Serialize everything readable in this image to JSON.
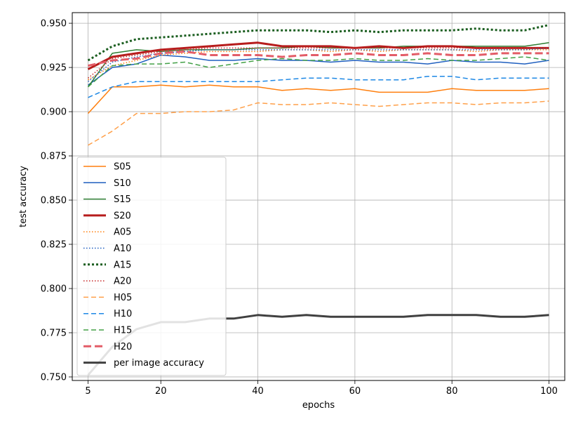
{
  "chart_data": {
    "type": "line",
    "title": "",
    "xlabel": "epochs",
    "ylabel": "test accuracy",
    "xlim": [
      1.75,
      103.25
    ],
    "ylim": [
      0.748,
      0.956
    ],
    "xticks": [
      "5",
      "20",
      "40",
      "60",
      "80",
      "100"
    ],
    "xtick_values": [
      5,
      20,
      40,
      60,
      80,
      100
    ],
    "yticks": [
      "0.750",
      "0.775",
      "0.800",
      "0.825",
      "0.850",
      "0.875",
      "0.900",
      "0.925",
      "0.950"
    ],
    "ytick_values": [
      0.75,
      0.775,
      0.8,
      0.825,
      0.85,
      0.875,
      0.9,
      0.925,
      0.95
    ],
    "grid": true,
    "legend_position": "lower-left",
    "x": [
      5,
      10,
      15,
      20,
      25,
      30,
      35,
      40,
      45,
      50,
      55,
      60,
      65,
      70,
      75,
      80,
      85,
      90,
      95,
      100
    ],
    "series": [
      {
        "name": "S05",
        "color": "#ff7f0e",
        "style": "solid",
        "width": 1.5,
        "values": [
          0.899,
          0.914,
          0.914,
          0.915,
          0.914,
          0.915,
          0.914,
          0.914,
          0.912,
          0.913,
          0.912,
          0.913,
          0.911,
          0.911,
          0.911,
          0.913,
          0.912,
          0.912,
          0.912,
          0.913
        ]
      },
      {
        "name": "S10",
        "color": "#1f5fbf",
        "style": "solid",
        "width": 1.5,
        "values": [
          0.915,
          0.925,
          0.927,
          0.932,
          0.931,
          0.929,
          0.929,
          0.93,
          0.929,
          0.929,
          0.928,
          0.929,
          0.928,
          0.928,
          0.927,
          0.929,
          0.928,
          0.928,
          0.927,
          0.929
        ]
      },
      {
        "name": "S15",
        "color": "#2e7d32",
        "style": "solid",
        "width": 1.5,
        "values": [
          0.914,
          0.933,
          0.935,
          0.934,
          0.935,
          0.935,
          0.935,
          0.936,
          0.936,
          0.937,
          0.936,
          0.936,
          0.936,
          0.937,
          0.937,
          0.937,
          0.937,
          0.937,
          0.937,
          0.939
        ]
      },
      {
        "name": "S20",
        "color": "#b71c1c",
        "style": "solid",
        "width": 3,
        "values": [
          0.924,
          0.931,
          0.933,
          0.935,
          0.936,
          0.937,
          0.938,
          0.939,
          0.937,
          0.937,
          0.937,
          0.936,
          0.937,
          0.936,
          0.937,
          0.937,
          0.936,
          0.936,
          0.936,
          0.936
        ]
      },
      {
        "name": "A05",
        "color": "#ff7f0e",
        "style": "dotted",
        "width": 1.5,
        "values": [
          0.918,
          0.926,
          0.929,
          0.932,
          0.933,
          0.934,
          0.934,
          0.934,
          0.935,
          0.935,
          0.934,
          0.935,
          0.934,
          0.935,
          0.935,
          0.935,
          0.934,
          0.935,
          0.935,
          0.935
        ]
      },
      {
        "name": "A10",
        "color": "#1f5fbf",
        "style": "dotted",
        "width": 1.5,
        "values": [
          0.917,
          0.928,
          0.931,
          0.933,
          0.934,
          0.935,
          0.935,
          0.935,
          0.935,
          0.935,
          0.935,
          0.935,
          0.935,
          0.935,
          0.935,
          0.935,
          0.935,
          0.935,
          0.935,
          0.936
        ]
      },
      {
        "name": "A15",
        "color": "#1b5e20",
        "style": "dotted",
        "width": 3,
        "values": [
          0.929,
          0.937,
          0.941,
          0.942,
          0.943,
          0.944,
          0.945,
          0.946,
          0.946,
          0.946,
          0.945,
          0.946,
          0.945,
          0.946,
          0.946,
          0.946,
          0.947,
          0.946,
          0.946,
          0.949
        ]
      },
      {
        "name": "A20",
        "color": "#c62828",
        "style": "dotted",
        "width": 1.5,
        "values": [
          0.919,
          0.93,
          0.932,
          0.934,
          0.935,
          0.936,
          0.936,
          0.936,
          0.936,
          0.936,
          0.936,
          0.936,
          0.936,
          0.936,
          0.936,
          0.936,
          0.936,
          0.936,
          0.936,
          0.936
        ]
      },
      {
        "name": "H05",
        "color": "#ffa04a",
        "style": "dashed",
        "width": 1.5,
        "values": [
          0.881,
          0.889,
          0.899,
          0.899,
          0.9,
          0.9,
          0.901,
          0.905,
          0.904,
          0.904,
          0.905,
          0.904,
          0.903,
          0.904,
          0.905,
          0.905,
          0.904,
          0.905,
          0.905,
          0.906
        ]
      },
      {
        "name": "H10",
        "color": "#1e88e5",
        "style": "dashed",
        "width": 1.5,
        "values": [
          0.908,
          0.914,
          0.917,
          0.917,
          0.917,
          0.917,
          0.917,
          0.917,
          0.918,
          0.919,
          0.919,
          0.918,
          0.918,
          0.918,
          0.92,
          0.92,
          0.918,
          0.919,
          0.919,
          0.919
        ]
      },
      {
        "name": "H15",
        "color": "#43a047",
        "style": "dashed",
        "width": 1.5,
        "values": [
          0.914,
          0.926,
          0.927,
          0.927,
          0.928,
          0.925,
          0.927,
          0.929,
          0.93,
          0.929,
          0.929,
          0.93,
          0.929,
          0.929,
          0.93,
          0.929,
          0.929,
          0.93,
          0.931,
          0.929
        ]
      },
      {
        "name": "H20",
        "color": "#e35d68",
        "style": "dashed",
        "width": 3,
        "values": [
          0.926,
          0.929,
          0.93,
          0.933,
          0.934,
          0.932,
          0.932,
          0.932,
          0.931,
          0.932,
          0.932,
          0.933,
          0.932,
          0.932,
          0.933,
          0.932,
          0.932,
          0.933,
          0.933,
          0.933
        ]
      },
      {
        "name": "per image accuracy",
        "color": "#404040",
        "style": "solid",
        "width": 3,
        "values": [
          0.751,
          0.767,
          0.777,
          0.781,
          0.781,
          0.783,
          0.783,
          0.785,
          0.784,
          0.785,
          0.784,
          0.784,
          0.784,
          0.784,
          0.785,
          0.785,
          0.785,
          0.784,
          0.784,
          0.785
        ]
      }
    ]
  }
}
